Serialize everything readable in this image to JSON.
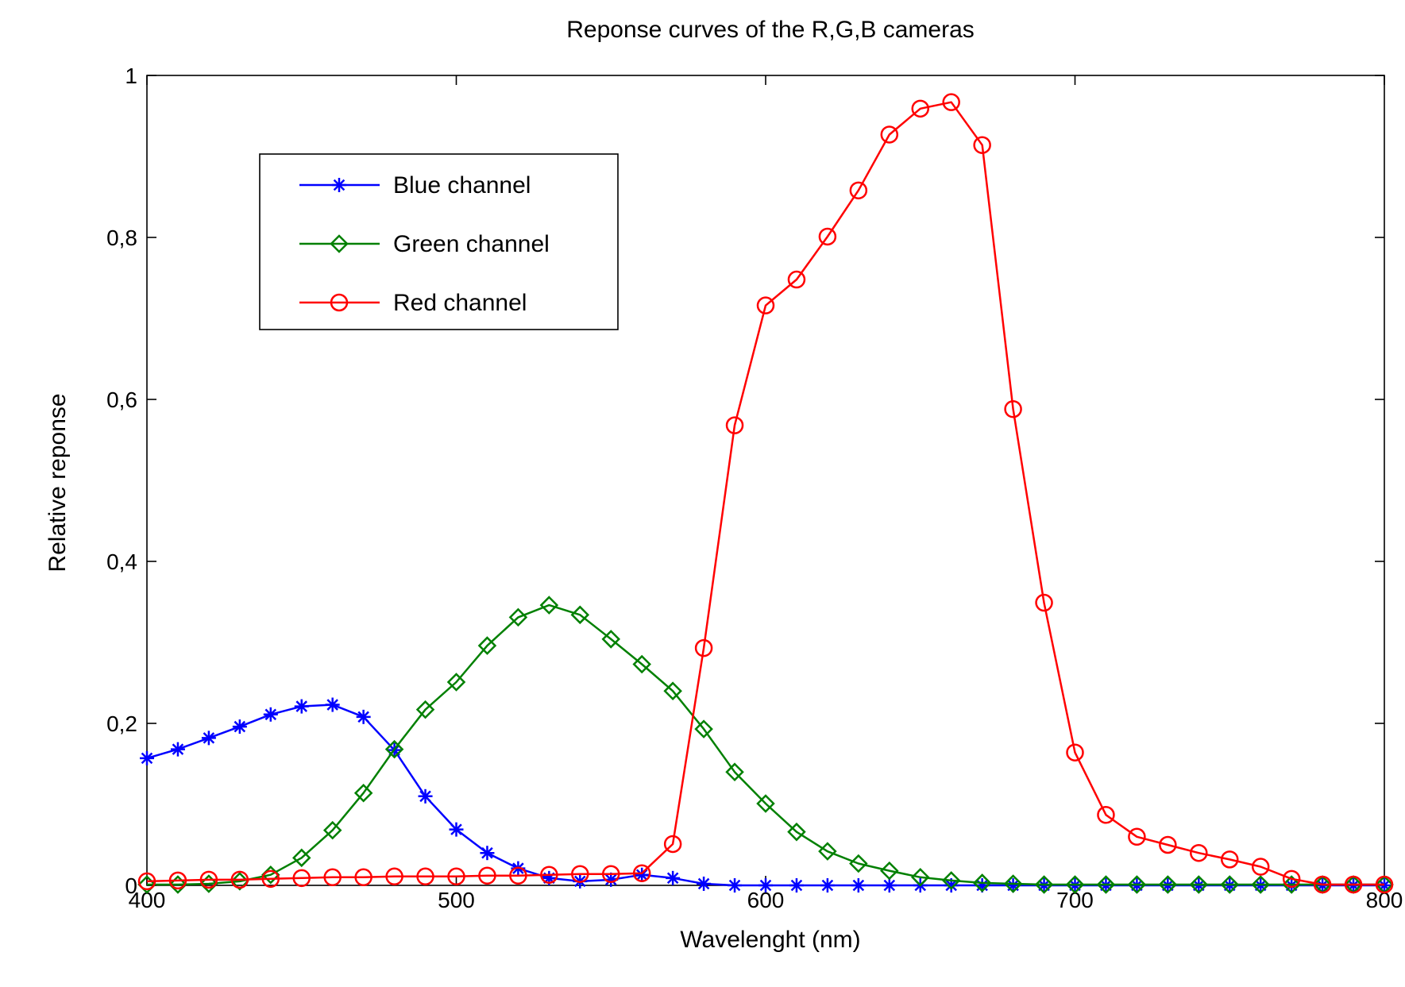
{
  "chart_data": {
    "type": "line",
    "title": "Reponse curves of the R,G,B cameras",
    "xlabel": "Wavelenght (nm)",
    "ylabel": "Relative reponse",
    "xlim": [
      400,
      800
    ],
    "ylim": [
      0,
      1
    ],
    "xticks": [
      400,
      500,
      600,
      700,
      800
    ],
    "xtick_labels": [
      "400",
      "500",
      "600",
      "700",
      "800"
    ],
    "yticks": [
      0,
      0.2,
      0.4,
      0.6,
      0.8,
      1
    ],
    "ytick_labels": [
      "0",
      "0,2",
      "0,4",
      "0,6",
      "0,8",
      "1"
    ],
    "grid": false,
    "legend_position": "top-left",
    "x": [
      400,
      410,
      420,
      430,
      440,
      450,
      460,
      470,
      480,
      490,
      500,
      510,
      520,
      530,
      540,
      550,
      560,
      570,
      580,
      590,
      600,
      610,
      620,
      630,
      640,
      650,
      660,
      670,
      680,
      690,
      700,
      710,
      720,
      730,
      740,
      750,
      760,
      770,
      780,
      790,
      800
    ],
    "series": [
      {
        "name": "Blue channel",
        "color": "#0000ff",
        "marker": "asterisk",
        "values": [
          0.157,
          0.168,
          0.182,
          0.196,
          0.211,
          0.221,
          0.223,
          0.208,
          0.167,
          0.11,
          0.069,
          0.04,
          0.021,
          0.009,
          0.005,
          0.007,
          0.013,
          0.009,
          0.002,
          0,
          0,
          0,
          0,
          0,
          0,
          0,
          0,
          0,
          0,
          0,
          0,
          0,
          0,
          0,
          0,
          0,
          0,
          0,
          0,
          0,
          0
        ]
      },
      {
        "name": "Green channel",
        "color": "#008000",
        "marker": "diamond",
        "values": [
          0.001,
          0.001,
          0.002,
          0.005,
          0.013,
          0.034,
          0.068,
          0.114,
          0.168,
          0.217,
          0.251,
          0.296,
          0.331,
          0.346,
          0.334,
          0.304,
          0.273,
          0.24,
          0.193,
          0.14,
          0.101,
          0.066,
          0.042,
          0.027,
          0.018,
          0.01,
          0.006,
          0.003,
          0.002,
          0.001,
          0.001,
          0.001,
          0.001,
          0.001,
          0.001,
          0.001,
          0.001,
          0.001,
          0.001,
          0.001,
          0.001
        ]
      },
      {
        "name": "Red channel",
        "color": "#ff0000",
        "marker": "circle",
        "values": [
          0.005,
          0.006,
          0.007,
          0.007,
          0.008,
          0.009,
          0.01,
          0.01,
          0.011,
          0.011,
          0.011,
          0.012,
          0.012,
          0.013,
          0.014,
          0.014,
          0.015,
          0.051,
          0.293,
          0.568,
          0.716,
          0.748,
          0.801,
          0.858,
          0.927,
          0.959,
          0.967,
          0.914,
          0.588,
          0.349,
          0.164,
          0.087,
          0.06,
          0.05,
          0.04,
          0.032,
          0.023,
          0.008,
          0.001,
          0.001,
          0.001
        ]
      }
    ]
  }
}
